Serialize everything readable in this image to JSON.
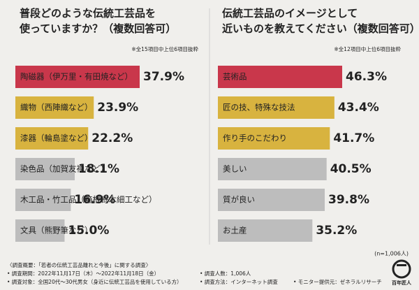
{
  "chart_data": [
    {
      "type": "hbar",
      "title": [
        "普段どのような伝統工芸品を",
        "使っていますか？（複数回答可）"
      ],
      "note": "※全15項目中上位6項目抜粋",
      "categories": [
        "陶磁器（伊万里・有田焼など）",
        "織物（西陣織など）",
        "漆器（輪島塗など）",
        "染色品（加賀友禅など）",
        "木工品・竹工品（箱根寄木細工など）",
        "文具（熊野筆など）"
      ],
      "values": [
        37.9,
        23.9,
        22.2,
        18.1,
        16.9,
        15.0
      ],
      "value_labels": [
        "37.9%",
        "23.9%",
        "22.2%",
        "18.1%",
        "16.9%",
        "15.0%"
      ],
      "colors": [
        "#c9374b",
        "#d8b33f",
        "#d8b33f",
        "#bdbdbd",
        "#bdbdbd",
        "#bdbdbd"
      ],
      "label_colors": [
        "#ffffff",
        "#ffffff",
        "#ffffff",
        "#222222",
        "#222222",
        "#222222"
      ],
      "value_label_colors": [
        "#c9374b",
        "#c9a02e",
        "#c9a02e",
        "#333333",
        "#333333",
        "#333333"
      ]
    },
    {
      "type": "hbar",
      "title": [
        "伝統工芸品のイメージとして",
        "近いものを教えてください（複数回答可）"
      ],
      "note": "※全12項目中上位6項目抜粋",
      "categories": [
        "芸術品",
        "匠の技、特殊な技法",
        "作り手のこだわり",
        "美しい",
        "質が良い",
        "お土産"
      ],
      "values": [
        46.3,
        43.4,
        41.7,
        40.5,
        39.8,
        35.2
      ],
      "value_labels": [
        "46.3%",
        "43.4%",
        "41.7%",
        "40.5%",
        "39.8%",
        "35.2%"
      ],
      "colors": [
        "#c9374b",
        "#d8b33f",
        "#d8b33f",
        "#bdbdbd",
        "#bdbdbd",
        "#bdbdbd"
      ],
      "label_colors": [
        "#ffffff",
        "#ffffff",
        "#ffffff",
        "#222222",
        "#222222",
        "#222222"
      ],
      "value_label_colors": [
        "#c9374b",
        "#c9a02e",
        "#c9a02e",
        "#333333",
        "#333333",
        "#333333"
      ]
    }
  ],
  "sample": "(n=1,006人)",
  "survey": {
    "heading": "〈調査概要：「若者の伝統工芸品離れと今後」に関する調査〉",
    "items": [
      "• 調査期間：2022年11月17日（木）〜2022年11月18日（金）",
      "• 調査対象：全国20代〜30代男女（身近に伝統工芸品を使用している方）",
      "• 調査人数：1,006人",
      "• 調査方法：インターネット調査",
      "• モニター提供元：ゼネラルリサーチ"
    ]
  },
  "logo": "百年匠人"
}
